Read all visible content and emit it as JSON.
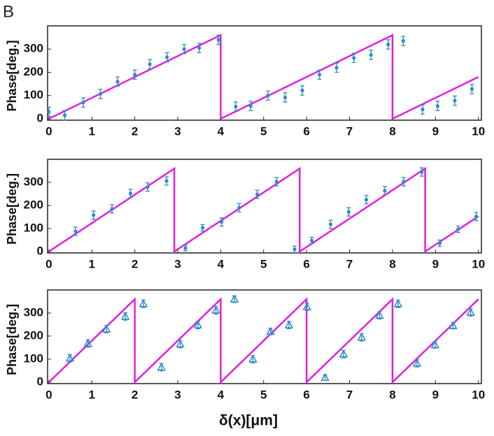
{
  "panel_label": "B",
  "xlabel": "δ(x)[μm]",
  "chart_data": [
    {
      "type": "scatter",
      "ylabel": "Phase[deg.]",
      "marker": "dot",
      "xlim": [
        -0.03,
        10.07
      ],
      "ylim": [
        -6,
        400
      ],
      "xticks": [
        0,
        1,
        2,
        3,
        4,
        5,
        6,
        7,
        8,
        9,
        10
      ],
      "yticks": [
        0,
        100,
        200,
        300
      ],
      "line": {
        "color": "#e01fe0",
        "x": [
          0,
          4,
          4,
          8,
          8,
          10
        ],
        "values": [
          0,
          360,
          0,
          360,
          0,
          180
        ]
      },
      "points": {
        "color": "#2b8cc4",
        "x": [
          0,
          0.37,
          0.8,
          1.2,
          1.6,
          2.0,
          2.35,
          2.75,
          3.15,
          3.5,
          3.95,
          4.35,
          4.7,
          5.1,
          5.5,
          5.9,
          6.3,
          6.7,
          7.1,
          7.5,
          7.9,
          8.25,
          8.7,
          9.05,
          9.45,
          9.85
        ],
        "values": [
          30,
          15,
          70,
          107,
          160,
          190,
          235,
          265,
          300,
          305,
          340,
          52,
          55,
          100,
          92,
          122,
          190,
          220,
          262,
          275,
          320,
          335,
          40,
          55,
          78,
          128
        ],
        "errors": [
          20,
          20,
          20,
          20,
          20,
          20,
          20,
          20,
          20,
          20,
          20,
          20,
          20,
          20,
          20,
          20,
          20,
          20,
          20,
          20,
          20,
          20,
          20,
          20,
          20,
          20
        ]
      }
    },
    {
      "type": "scatter",
      "ylabel": "Phase[deg.]",
      "marker": "dot",
      "xlim": [
        -0.03,
        10.07
      ],
      "ylim": [
        -6,
        400
      ],
      "xticks": [
        0,
        1,
        2,
        3,
        4,
        5,
        6,
        7,
        8,
        9,
        10
      ],
      "yticks": [
        0,
        100,
        200,
        300
      ],
      "line": {
        "color": "#e01fe0",
        "x": [
          0,
          2.92,
          2.92,
          5.84,
          5.84,
          8.76,
          8.76,
          10
        ],
        "values": [
          0,
          360,
          0,
          360,
          0,
          360,
          0,
          153
        ]
      },
      "points": {
        "color": "#2b8cc4",
        "x": [
          0.62,
          1.04,
          1.47,
          1.9,
          2.3,
          2.74,
          3.18,
          3.58,
          4.02,
          4.43,
          4.85,
          5.3,
          5.72,
          6.12,
          6.56,
          6.98,
          7.39,
          7.82,
          8.26,
          8.68,
          9.1,
          9.53,
          9.95
        ],
        "values": [
          88,
          158,
          185,
          252,
          280,
          306,
          15,
          103,
          128,
          190,
          248,
          303,
          10,
          48,
          118,
          172,
          225,
          264,
          303,
          345,
          36,
          97,
          152
        ],
        "errors": [
          18,
          18,
          18,
          18,
          18,
          18,
          12,
          14,
          18,
          18,
          18,
          18,
          14,
          14,
          18,
          18,
          18,
          18,
          18,
          18,
          14,
          14,
          18
        ]
      }
    },
    {
      "type": "scatter",
      "ylabel": "Phase[deg.]",
      "marker": "triangle",
      "xlim": [
        -0.03,
        10.07
      ],
      "ylim": [
        -6,
        400
      ],
      "xticks": [
        0,
        1,
        2,
        3,
        4,
        5,
        6,
        7,
        8,
        9,
        10
      ],
      "yticks": [
        0,
        100,
        200,
        300
      ],
      "line": {
        "color": "#e01fe0",
        "x": [
          0,
          2,
          2,
          4,
          4,
          6,
          6,
          8,
          8,
          10
        ],
        "values": [
          0,
          360,
          0,
          360,
          0,
          360,
          0,
          360,
          0,
          360
        ]
      },
      "points": {
        "color": "#2b8cc4",
        "x": [
          0.49,
          0.91,
          1.34,
          1.78,
          2.2,
          2.62,
          3.06,
          3.47,
          3.89,
          4.32,
          4.75,
          5.16,
          5.59,
          6.01,
          6.43,
          6.86,
          7.28,
          7.7,
          8.13,
          8.57,
          8.99,
          9.41,
          9.82
        ],
        "values": [
          104,
          168,
          230,
          285,
          340,
          65,
          165,
          248,
          312,
          360,
          100,
          220,
          248,
          327,
          20,
          122,
          195,
          290,
          340,
          82,
          162,
          245,
          303
        ],
        "errors": [
          16,
          16,
          16,
          16,
          16,
          16,
          16,
          16,
          16,
          14,
          16,
          14,
          16,
          16,
          12,
          16,
          16,
          16,
          16,
          16,
          14,
          14,
          16
        ]
      }
    }
  ]
}
